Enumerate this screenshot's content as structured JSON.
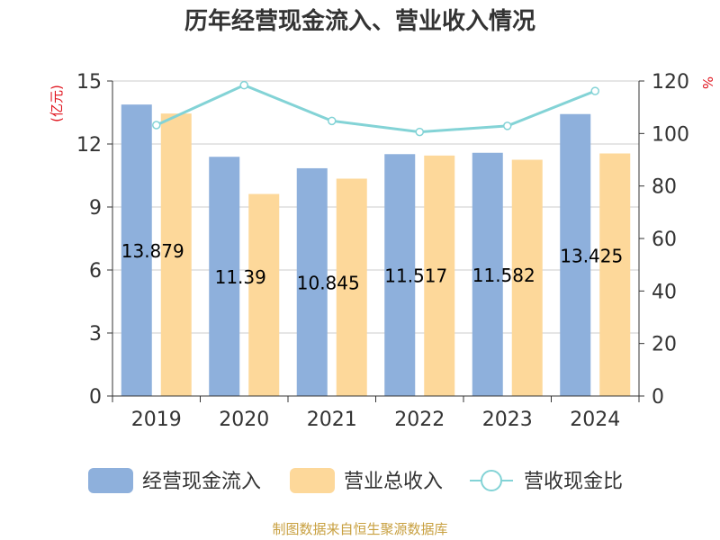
{
  "chart_data": {
    "type": "bar",
    "title": "历年经营现金流入、营业收入情况",
    "categories": [
      "2019",
      "2020",
      "2021",
      "2022",
      "2023",
      "2024"
    ],
    "series": [
      {
        "name": "经营现金流入",
        "type": "bar",
        "axis": "left",
        "color": "#8eb0dc",
        "values": [
          13.879,
          11.39,
          10.845,
          11.517,
          11.582,
          13.425
        ]
      },
      {
        "name": "营业总收入",
        "type": "bar",
        "axis": "left",
        "color": "#fdd89a",
        "values": [
          13.45,
          9.62,
          10.35,
          11.45,
          11.25,
          11.55
        ]
      },
      {
        "name": "营收现金比",
        "type": "line",
        "axis": "right",
        "color": "#83d3d6",
        "values": [
          103.2,
          118.4,
          104.8,
          100.6,
          102.9,
          116.2
        ]
      }
    ],
    "data_labels": [
      "13.879",
      "11.39",
      "10.845",
      "11.517",
      "11.582",
      "13.425"
    ],
    "y_left": {
      "label": "(亿元)",
      "min": 0,
      "max": 15,
      "ticks": [
        "0",
        "3",
        "6",
        "9",
        "12",
        "15"
      ]
    },
    "y_right": {
      "label": "%",
      "min": 0,
      "max": 120,
      "ticks": [
        "0",
        "20",
        "40",
        "60",
        "80",
        "100",
        "120"
      ]
    },
    "grid": true,
    "legend_position": "bottom"
  },
  "source": "制图数据来自恒生聚源数据库"
}
